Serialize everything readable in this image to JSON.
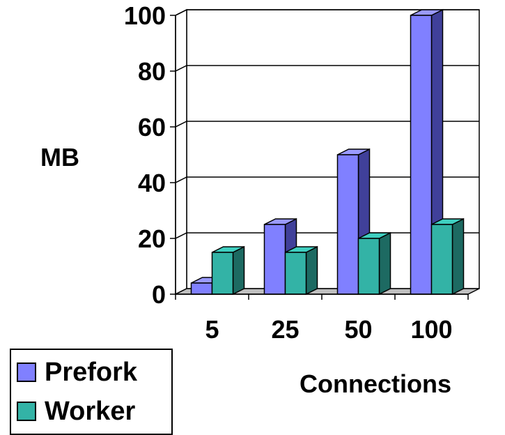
{
  "chart_data": {
    "type": "bar",
    "title": "",
    "xlabel": "Connections",
    "ylabel": "MB",
    "categories": [
      "5",
      "25",
      "50",
      "100"
    ],
    "series": [
      {
        "name": "Prefork",
        "values": [
          4,
          25,
          50,
          100
        ]
      },
      {
        "name": "Worker",
        "values": [
          15,
          15,
          20,
          25
        ]
      }
    ],
    "ylim": [
      0,
      100
    ],
    "yticks": [
      "0",
      "20",
      "40",
      "60",
      "80",
      "100"
    ],
    "grid": true,
    "legend": "bottom-left",
    "style": "3d"
  },
  "colors": {
    "prefork_front": "#8080ff",
    "prefork_side": "#40409a",
    "prefork_top": "#9a9aff",
    "worker_front": "#33b3a6",
    "worker_side": "#1d6a62",
    "worker_top": "#3fcfc0",
    "wall": "#ffffff",
    "floor": "#c0c0c0"
  }
}
